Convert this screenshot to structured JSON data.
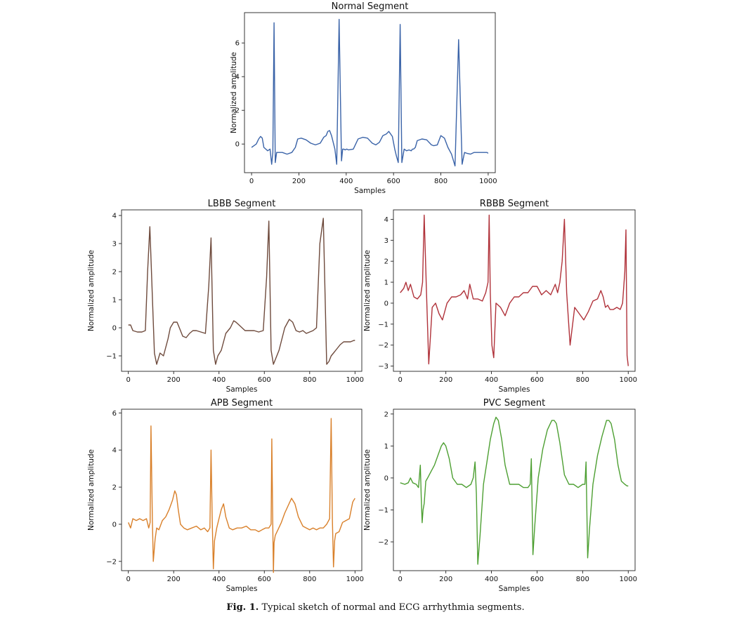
{
  "figure": {
    "caption_label": "Fig. 1.",
    "caption_text": "Typical sketch of normal and ECG arrhythmia segments."
  },
  "chart_data": [
    {
      "type": "line",
      "title": "Normal Segment",
      "xlabel": "Samples",
      "ylabel": "Normalized amplitude",
      "xlim": [
        -30,
        1030
      ],
      "ylim": [
        -1.7,
        7.8
      ],
      "xticks": [
        0,
        200,
        400,
        600,
        800,
        1000
      ],
      "yticks": [
        0,
        2,
        4,
        6
      ],
      "ytick_labels": [
        "0",
        "2",
        "4",
        "6"
      ],
      "color": "#3a63a8",
      "x": [
        0,
        10,
        20,
        30,
        38,
        45,
        52,
        60,
        68,
        78,
        85,
        90,
        95,
        100,
        106,
        115,
        130,
        150,
        170,
        185,
        195,
        210,
        230,
        250,
        270,
        290,
        305,
        315,
        322,
        330,
        338,
        345,
        352,
        360,
        370,
        380,
        385,
        390,
        395,
        402,
        410,
        430,
        450,
        470,
        490,
        510,
        525,
        540,
        555,
        570,
        580,
        595,
        605,
        612,
        620,
        628,
        635,
        645,
        655,
        665,
        675,
        680,
        685,
        692,
        700,
        720,
        740,
        760,
        770,
        785,
        800,
        815,
        830,
        845,
        860,
        875,
        890,
        900,
        910,
        925,
        940,
        948,
        955,
        962,
        968,
        972,
        978,
        985,
        995,
        1000
      ],
      "y": [
        -0.2,
        -0.1,
        0.0,
        0.3,
        0.45,
        0.35,
        -0.2,
        -0.3,
        -0.4,
        -0.3,
        -1.2,
        -0.5,
        7.2,
        -1.1,
        -0.5,
        -0.5,
        -0.5,
        -0.6,
        -0.5,
        -0.2,
        0.3,
        0.35,
        0.25,
        0.05,
        -0.05,
        0.05,
        0.4,
        0.5,
        0.75,
        0.8,
        0.5,
        0.1,
        -0.3,
        -1.2,
        7.4,
        -1.0,
        -0.3,
        -0.3,
        -0.35,
        -0.3,
        -0.35,
        -0.3,
        0.3,
        0.4,
        0.35,
        0.05,
        -0.05,
        0.1,
        0.5,
        0.6,
        0.75,
        0.45,
        -0.3,
        -0.7,
        -1.1,
        7.1,
        -1.1,
        -0.3,
        -0.4,
        -0.35,
        -0.4,
        -0.3,
        -0.3,
        -0.2,
        0.2,
        0.3,
        0.25,
        -0.05,
        -0.1,
        -0.05,
        0.5,
        0.35,
        -0.2,
        -0.6,
        -1.3,
        6.2,
        -1.2,
        -0.5,
        -0.55,
        -0.6,
        -0.5,
        -0.5,
        -0.5,
        -0.5,
        -0.5,
        -0.5,
        -0.5,
        -0.5,
        -0.5,
        -0.55
      ]
    },
    {
      "type": "line",
      "title": "LBBB Segment",
      "xlabel": "Samples",
      "ylabel": "Normalized amplitude",
      "xlim": [
        -30,
        1030
      ],
      "ylim": [
        -1.55,
        4.2
      ],
      "xticks": [
        0,
        200,
        400,
        600,
        800,
        1000
      ],
      "yticks": [
        -1,
        0,
        1,
        2,
        3,
        4
      ],
      "ytick_labels": [
        "−1",
        "0",
        "1",
        "2",
        "3",
        "4"
      ],
      "color": "#6e4a3c",
      "x": [
        0,
        10,
        20,
        40,
        60,
        75,
        85,
        95,
        105,
        115,
        125,
        140,
        155,
        165,
        175,
        185,
        200,
        215,
        225,
        240,
        255,
        270,
        285,
        300,
        320,
        340,
        355,
        365,
        375,
        385,
        395,
        410,
        430,
        450,
        465,
        475,
        495,
        515,
        535,
        555,
        575,
        595,
        610,
        620,
        630,
        640,
        650,
        665,
        690,
        710,
        725,
        740,
        755,
        770,
        785,
        800,
        815,
        830,
        845,
        860,
        875,
        885,
        895,
        905,
        915,
        925,
        935,
        950,
        965,
        980,
        995,
        1000
      ],
      "y": [
        0.1,
        0.1,
        -0.1,
        -0.15,
        -0.15,
        -0.1,
        2.0,
        3.6,
        1.3,
        -0.9,
        -1.3,
        -0.9,
        -1.0,
        -0.7,
        -0.4,
        0.0,
        0.2,
        0.2,
        0.0,
        -0.3,
        -0.35,
        -0.2,
        -0.1,
        -0.1,
        -0.15,
        -0.2,
        1.5,
        3.2,
        -0.8,
        -1.3,
        -1.0,
        -0.8,
        -0.2,
        0.0,
        0.25,
        0.2,
        0.05,
        -0.1,
        -0.1,
        -0.1,
        -0.15,
        -0.1,
        1.8,
        3.8,
        -0.8,
        -1.3,
        -1.1,
        -0.8,
        0.0,
        0.3,
        0.2,
        -0.1,
        -0.15,
        -0.1,
        -0.2,
        -0.15,
        -0.1,
        0.0,
        3.0,
        3.9,
        -1.3,
        -1.2,
        -1.0,
        -0.9,
        -0.8,
        -0.7,
        -0.6,
        -0.5,
        -0.5,
        -0.5,
        -0.45,
        -0.45
      ]
    },
    {
      "type": "line",
      "title": "RBBB Segment",
      "xlabel": "Samples",
      "ylabel": "Normalized amplitude",
      "xlim": [
        -30,
        1030
      ],
      "ylim": [
        -3.25,
        4.45
      ],
      "xticks": [
        0,
        200,
        400,
        600,
        800,
        1000
      ],
      "yticks": [
        -3,
        -2,
        -1,
        0,
        1,
        2,
        3,
        4
      ],
      "ytick_labels": [
        "−3",
        "−2",
        "−1",
        "0",
        "1",
        "2",
        "3",
        "4"
      ],
      "color": "#b0323a",
      "x": [
        0,
        15,
        25,
        35,
        45,
        60,
        75,
        90,
        98,
        105,
        115,
        125,
        140,
        155,
        170,
        185,
        205,
        225,
        245,
        265,
        280,
        295,
        305,
        320,
        340,
        360,
        375,
        385,
        390,
        395,
        402,
        410,
        420,
        440,
        460,
        480,
        500,
        520,
        540,
        560,
        580,
        600,
        620,
        640,
        660,
        680,
        690,
        700,
        710,
        720,
        730,
        745,
        765,
        785,
        805,
        825,
        845,
        865,
        880,
        890,
        900,
        910,
        920,
        935,
        950,
        965,
        975,
        985,
        990,
        995,
        1000
      ],
      "y": [
        0.5,
        0.7,
        1.0,
        0.6,
        0.9,
        0.3,
        0.2,
        0.4,
        1.0,
        4.2,
        0.5,
        -2.9,
        -0.2,
        0.0,
        -0.5,
        -0.8,
        0.0,
        0.3,
        0.3,
        0.4,
        0.6,
        0.2,
        0.9,
        0.2,
        0.2,
        0.1,
        0.5,
        1.0,
        4.2,
        0.5,
        -2.0,
        -2.6,
        0.0,
        -0.2,
        -0.6,
        0.0,
        0.3,
        0.3,
        0.5,
        0.5,
        0.8,
        0.8,
        0.4,
        0.6,
        0.4,
        0.9,
        0.5,
        1.0,
        2.0,
        4.0,
        0.5,
        -2.0,
        -0.2,
        -0.5,
        -0.8,
        -0.4,
        0.1,
        0.2,
        0.6,
        0.3,
        -0.2,
        -0.1,
        -0.3,
        -0.3,
        -0.2,
        -0.3,
        0.0,
        1.5,
        3.5,
        -2.5,
        -3.0
      ]
    },
    {
      "type": "line",
      "title": "APB Segment",
      "xlabel": "Samples",
      "ylabel": "Normalized amplitude",
      "xlim": [
        -30,
        1030
      ],
      "ylim": [
        -2.5,
        6.2
      ],
      "xticks": [
        0,
        200,
        400,
        600,
        800,
        1000
      ],
      "yticks": [
        -2,
        0,
        2,
        4,
        6
      ],
      "ytick_labels": [
        "−2",
        "0",
        "2",
        "4",
        "6"
      ],
      "color": "#d9802a",
      "x": [
        0,
        10,
        20,
        35,
        50,
        65,
        80,
        90,
        96,
        100,
        106,
        110,
        118,
        125,
        135,
        150,
        165,
        180,
        195,
        205,
        212,
        220,
        230,
        245,
        260,
        280,
        300,
        320,
        335,
        350,
        360,
        365,
        370,
        375,
        380,
        390,
        400,
        410,
        420,
        430,
        445,
        460,
        480,
        500,
        520,
        540,
        560,
        575,
        590,
        605,
        620,
        630,
        633,
        637,
        640,
        643,
        648,
        660,
        675,
        690,
        705,
        720,
        735,
        750,
        770,
        785,
        800,
        815,
        830,
        845,
        860,
        875,
        888,
        895,
        900,
        905,
        910,
        915,
        930,
        945,
        960,
        975,
        990,
        1000
      ],
      "y": [
        0.1,
        -0.2,
        0.3,
        0.2,
        0.3,
        0.2,
        0.3,
        -0.2,
        0.1,
        5.3,
        0.2,
        -2.0,
        -0.8,
        -0.2,
        -0.3,
        0.2,
        0.4,
        0.8,
        1.3,
        1.8,
        1.6,
        0.8,
        0.0,
        -0.2,
        -0.3,
        -0.2,
        -0.1,
        -0.3,
        -0.2,
        -0.4,
        -0.2,
        4.0,
        0.2,
        -2.4,
        -0.9,
        -0.2,
        0.3,
        0.8,
        1.1,
        0.4,
        -0.2,
        -0.3,
        -0.2,
        -0.2,
        -0.1,
        -0.3,
        -0.3,
        -0.4,
        -0.3,
        -0.2,
        -0.2,
        0.0,
        4.6,
        0.2,
        -2.6,
        -1.0,
        -0.6,
        -0.3,
        0.1,
        0.6,
        1.0,
        1.4,
        1.1,
        0.4,
        -0.1,
        -0.2,
        -0.3,
        -0.2,
        -0.3,
        -0.2,
        -0.2,
        0.0,
        0.3,
        5.7,
        0.3,
        -2.3,
        -0.9,
        -0.5,
        -0.4,
        0.1,
        0.2,
        0.3,
        1.2,
        1.4
      ]
    },
    {
      "type": "line",
      "title": "PVC Segment",
      "xlabel": "Samples",
      "ylabel": "Normalized amplitude",
      "xlim": [
        -30,
        1030
      ],
      "ylim": [
        -2.9,
        2.15
      ],
      "xticks": [
        0,
        200,
        400,
        600,
        800,
        1000
      ],
      "yticks": [
        -2,
        -1,
        0,
        1,
        2
      ],
      "ytick_labels": [
        "−2",
        "−1",
        "0",
        "1",
        "2"
      ],
      "color": "#4d9f32",
      "x": [
        0,
        20,
        35,
        45,
        55,
        70,
        80,
        88,
        92,
        96,
        100,
        105,
        112,
        120,
        135,
        150,
        165,
        180,
        190,
        200,
        215,
        230,
        250,
        270,
        290,
        310,
        320,
        328,
        334,
        340,
        350,
        365,
        380,
        395,
        410,
        420,
        430,
        445,
        460,
        480,
        500,
        520,
        540,
        560,
        570,
        575,
        582,
        590,
        605,
        625,
        645,
        665,
        675,
        685,
        700,
        720,
        740,
        760,
        780,
        800,
        810,
        815,
        822,
        830,
        845,
        865,
        885,
        905,
        915,
        925,
        940,
        955,
        970,
        985,
        995,
        1000
      ],
      "y": [
        -0.15,
        -0.2,
        -0.15,
        0.0,
        -0.15,
        -0.2,
        -0.3,
        0.4,
        -0.6,
        -1.4,
        -1.0,
        -0.8,
        -0.1,
        0.0,
        0.2,
        0.4,
        0.7,
        1.0,
        1.1,
        1.0,
        0.6,
        0.0,
        -0.2,
        -0.2,
        -0.3,
        -0.2,
        0.0,
        0.5,
        -0.5,
        -2.7,
        -1.8,
        -0.2,
        0.5,
        1.2,
        1.7,
        1.9,
        1.8,
        1.2,
        0.4,
        -0.2,
        -0.2,
        -0.2,
        -0.3,
        -0.3,
        -0.2,
        0.6,
        -2.4,
        -1.5,
        0.0,
        0.9,
        1.5,
        1.8,
        1.8,
        1.7,
        1.1,
        0.1,
        -0.2,
        -0.2,
        -0.3,
        -0.2,
        -0.2,
        0.5,
        -2.5,
        -1.6,
        -0.2,
        0.7,
        1.3,
        1.8,
        1.8,
        1.7,
        1.2,
        0.4,
        -0.1,
        -0.2,
        -0.25,
        -0.25
      ]
    }
  ]
}
